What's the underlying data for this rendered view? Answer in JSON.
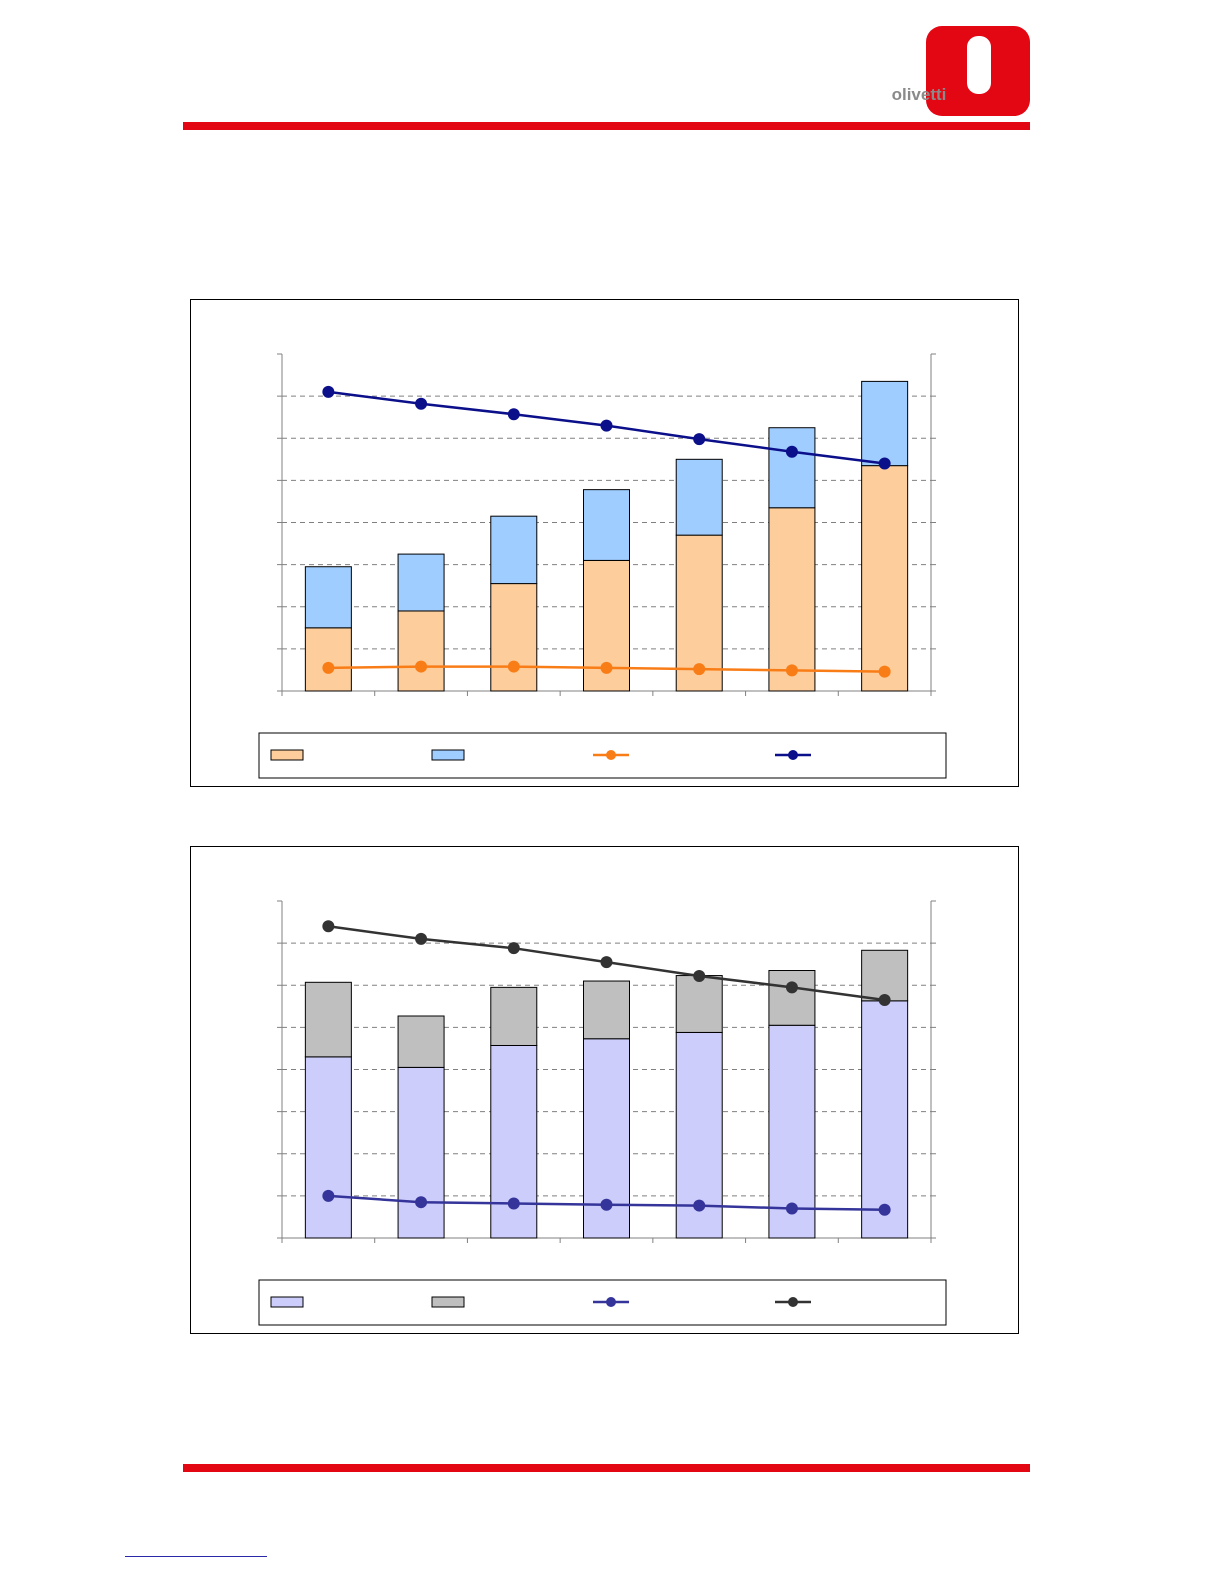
{
  "brand": {
    "logo_text": "olivetti",
    "accent_color": "#e30613",
    "logo_icon": "olivetti-o-logo-icon"
  },
  "chart_data": [
    {
      "type": "bar",
      "stacked": true,
      "title": "",
      "categories": [
        "",
        "",
        "",
        "",
        "",
        "",
        ""
      ],
      "series": [
        {
          "values": [
            1.5,
            1.9,
            2.55,
            3.1,
            3.7,
            4.35,
            5.35
          ],
          "color": "#fdcd9b",
          "kind": "bar",
          "axis": "left"
        },
        {
          "values": [
            1.45,
            1.35,
            1.6,
            1.68,
            1.8,
            1.9,
            2.0
          ],
          "color": "#9fcdff",
          "kind": "bar",
          "axis": "left"
        },
        {
          "values": [
            0.55,
            0.58,
            0.58,
            0.55,
            0.52,
            0.49,
            0.46
          ],
          "color": "#f97d17",
          "kind": "line",
          "axis": "left"
        },
        {
          "values": [
            7.1,
            6.82,
            6.57,
            6.3,
            5.98,
            5.68,
            5.4
          ],
          "color": "#0b0f8a",
          "kind": "line",
          "axis": "left"
        }
      ],
      "ylim": [
        0,
        8
      ],
      "grid": true,
      "legend": "bottom"
    },
    {
      "type": "bar",
      "stacked": true,
      "title": "",
      "categories": [
        "",
        "",
        "",
        "",
        "",
        "",
        ""
      ],
      "series": [
        {
          "values": [
            4.3,
            4.05,
            4.57,
            4.73,
            4.88,
            5.05,
            5.63
          ],
          "color": "#cccdfb",
          "kind": "bar",
          "axis": "left"
        },
        {
          "values": [
            1.77,
            1.22,
            1.38,
            1.37,
            1.35,
            1.3,
            1.2
          ],
          "color": "#bfbfbf",
          "kind": "bar",
          "axis": "left"
        },
        {
          "values": [
            1.0,
            0.85,
            0.82,
            0.79,
            0.77,
            0.7,
            0.67
          ],
          "color": "#34349a",
          "kind": "line",
          "axis": "left"
        },
        {
          "values": [
            7.4,
            7.1,
            6.88,
            6.55,
            6.22,
            5.95,
            5.65
          ],
          "color": "#333333",
          "kind": "line",
          "axis": "left"
        }
      ],
      "ylim": [
        0,
        8
      ],
      "grid": true,
      "legend": "bottom"
    }
  ]
}
